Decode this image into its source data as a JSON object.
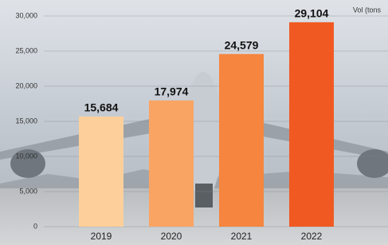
{
  "chart_data": {
    "type": "bar",
    "axis_label": "Vol (tons",
    "categories": [
      "2019",
      "2020",
      "2021",
      "2022"
    ],
    "values": [
      15684,
      17974,
      24579,
      29104
    ],
    "value_labels": [
      "15,684",
      "17,974",
      "24,579",
      "29,104"
    ],
    "colors": [
      "#fdd09b",
      "#f9a463",
      "#f5853f",
      "#f05a22"
    ],
    "ylim": [
      0,
      30000
    ],
    "yticks": [
      {
        "value": 0,
        "label": "0"
      },
      {
        "value": 5000,
        "label": "5,000"
      },
      {
        "value": 10000,
        "label": "10,000"
      },
      {
        "value": 15000,
        "label": "15,000"
      },
      {
        "value": 20000,
        "label": "20,000"
      },
      {
        "value": 25000,
        "label": "25,000"
      },
      {
        "value": 30000,
        "label": "30,000"
      }
    ],
    "grid": true
  }
}
